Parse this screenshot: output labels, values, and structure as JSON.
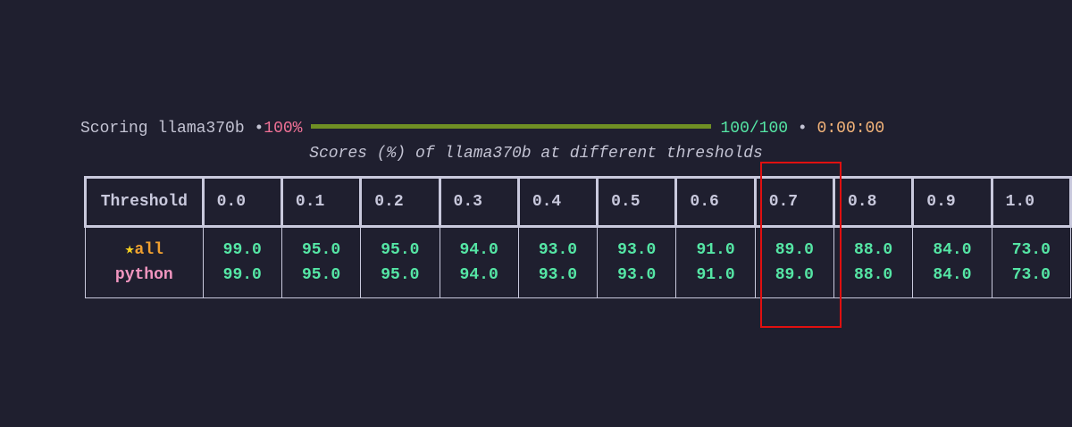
{
  "progress": {
    "label": "Scoring llama370b",
    "dot1": "•",
    "percent": "100%",
    "count": "100/100",
    "dot2": "•",
    "time": "0:00:00"
  },
  "table": {
    "caption": "Scores (%) of llama370b at different thresholds",
    "header": [
      "Threshold",
      "0.0",
      "0.1",
      "0.2",
      "0.3",
      "0.4",
      "0.5",
      "0.6",
      "0.7",
      "0.8",
      "0.9",
      "1.0"
    ],
    "rows": [
      {
        "star": "★",
        "label": "all",
        "values": [
          "99.0",
          "95.0",
          "95.0",
          "94.0",
          "93.0",
          "93.0",
          "91.0",
          "89.0",
          "88.0",
          "84.0",
          "73.0"
        ]
      },
      {
        "label": "python",
        "values": [
          "99.0",
          "95.0",
          "95.0",
          "94.0",
          "93.0",
          "93.0",
          "91.0",
          "89.0",
          "88.0",
          "84.0",
          "73.0"
        ]
      }
    ]
  }
}
